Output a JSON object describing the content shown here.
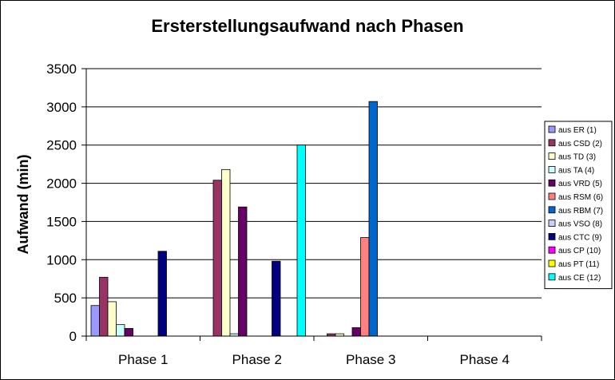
{
  "chart_data": {
    "type": "bar",
    "title": "Ersterstellungsaufwand nach Phasen",
    "xlabel": "",
    "ylabel": "Aufwand (min)",
    "ylim": [
      0,
      3500
    ],
    "yticks": [
      0,
      500,
      1000,
      1500,
      2000,
      2500,
      3000,
      3500
    ],
    "grid": true,
    "legend_position": "right",
    "categories": [
      "Phase 1",
      "Phase 2",
      "Phase 3",
      "Phase 4"
    ],
    "series": [
      {
        "name": "aus ER (1)",
        "color": "#9999ff",
        "values": [
          400,
          0,
          0,
          0
        ]
      },
      {
        "name": "aus CSD (2)",
        "color": "#993366",
        "values": [
          770,
          2040,
          30,
          0
        ]
      },
      {
        "name": "aus TD (3)",
        "color": "#ffffcc",
        "values": [
          450,
          2180,
          30,
          0
        ]
      },
      {
        "name": "aus TA (4)",
        "color": "#ccffff",
        "values": [
          150,
          30,
          0,
          0
        ]
      },
      {
        "name": "aus VRD (5)",
        "color": "#660066",
        "values": [
          100,
          1690,
          110,
          0
        ]
      },
      {
        "name": "aus RSM (6)",
        "color": "#ff8080",
        "values": [
          0,
          0,
          1290,
          0
        ]
      },
      {
        "name": "aus RBM (7)",
        "color": "#0066cc",
        "values": [
          0,
          0,
          3070,
          0
        ]
      },
      {
        "name": "aus VSO (8)",
        "color": "#ccccff",
        "values": [
          0,
          0,
          0,
          0
        ]
      },
      {
        "name": "aus CTC (9)",
        "color": "#000080",
        "values": [
          1110,
          980,
          0,
          0
        ]
      },
      {
        "name": "aus CP (10)",
        "color": "#ff00ff",
        "values": [
          0,
          0,
          0,
          0
        ]
      },
      {
        "name": "aus PT (11)",
        "color": "#ffff00",
        "values": [
          0,
          0,
          0,
          0
        ]
      },
      {
        "name": "aus CE (12)",
        "color": "#00ffff",
        "values": [
          0,
          2500,
          0,
          0
        ]
      }
    ]
  }
}
